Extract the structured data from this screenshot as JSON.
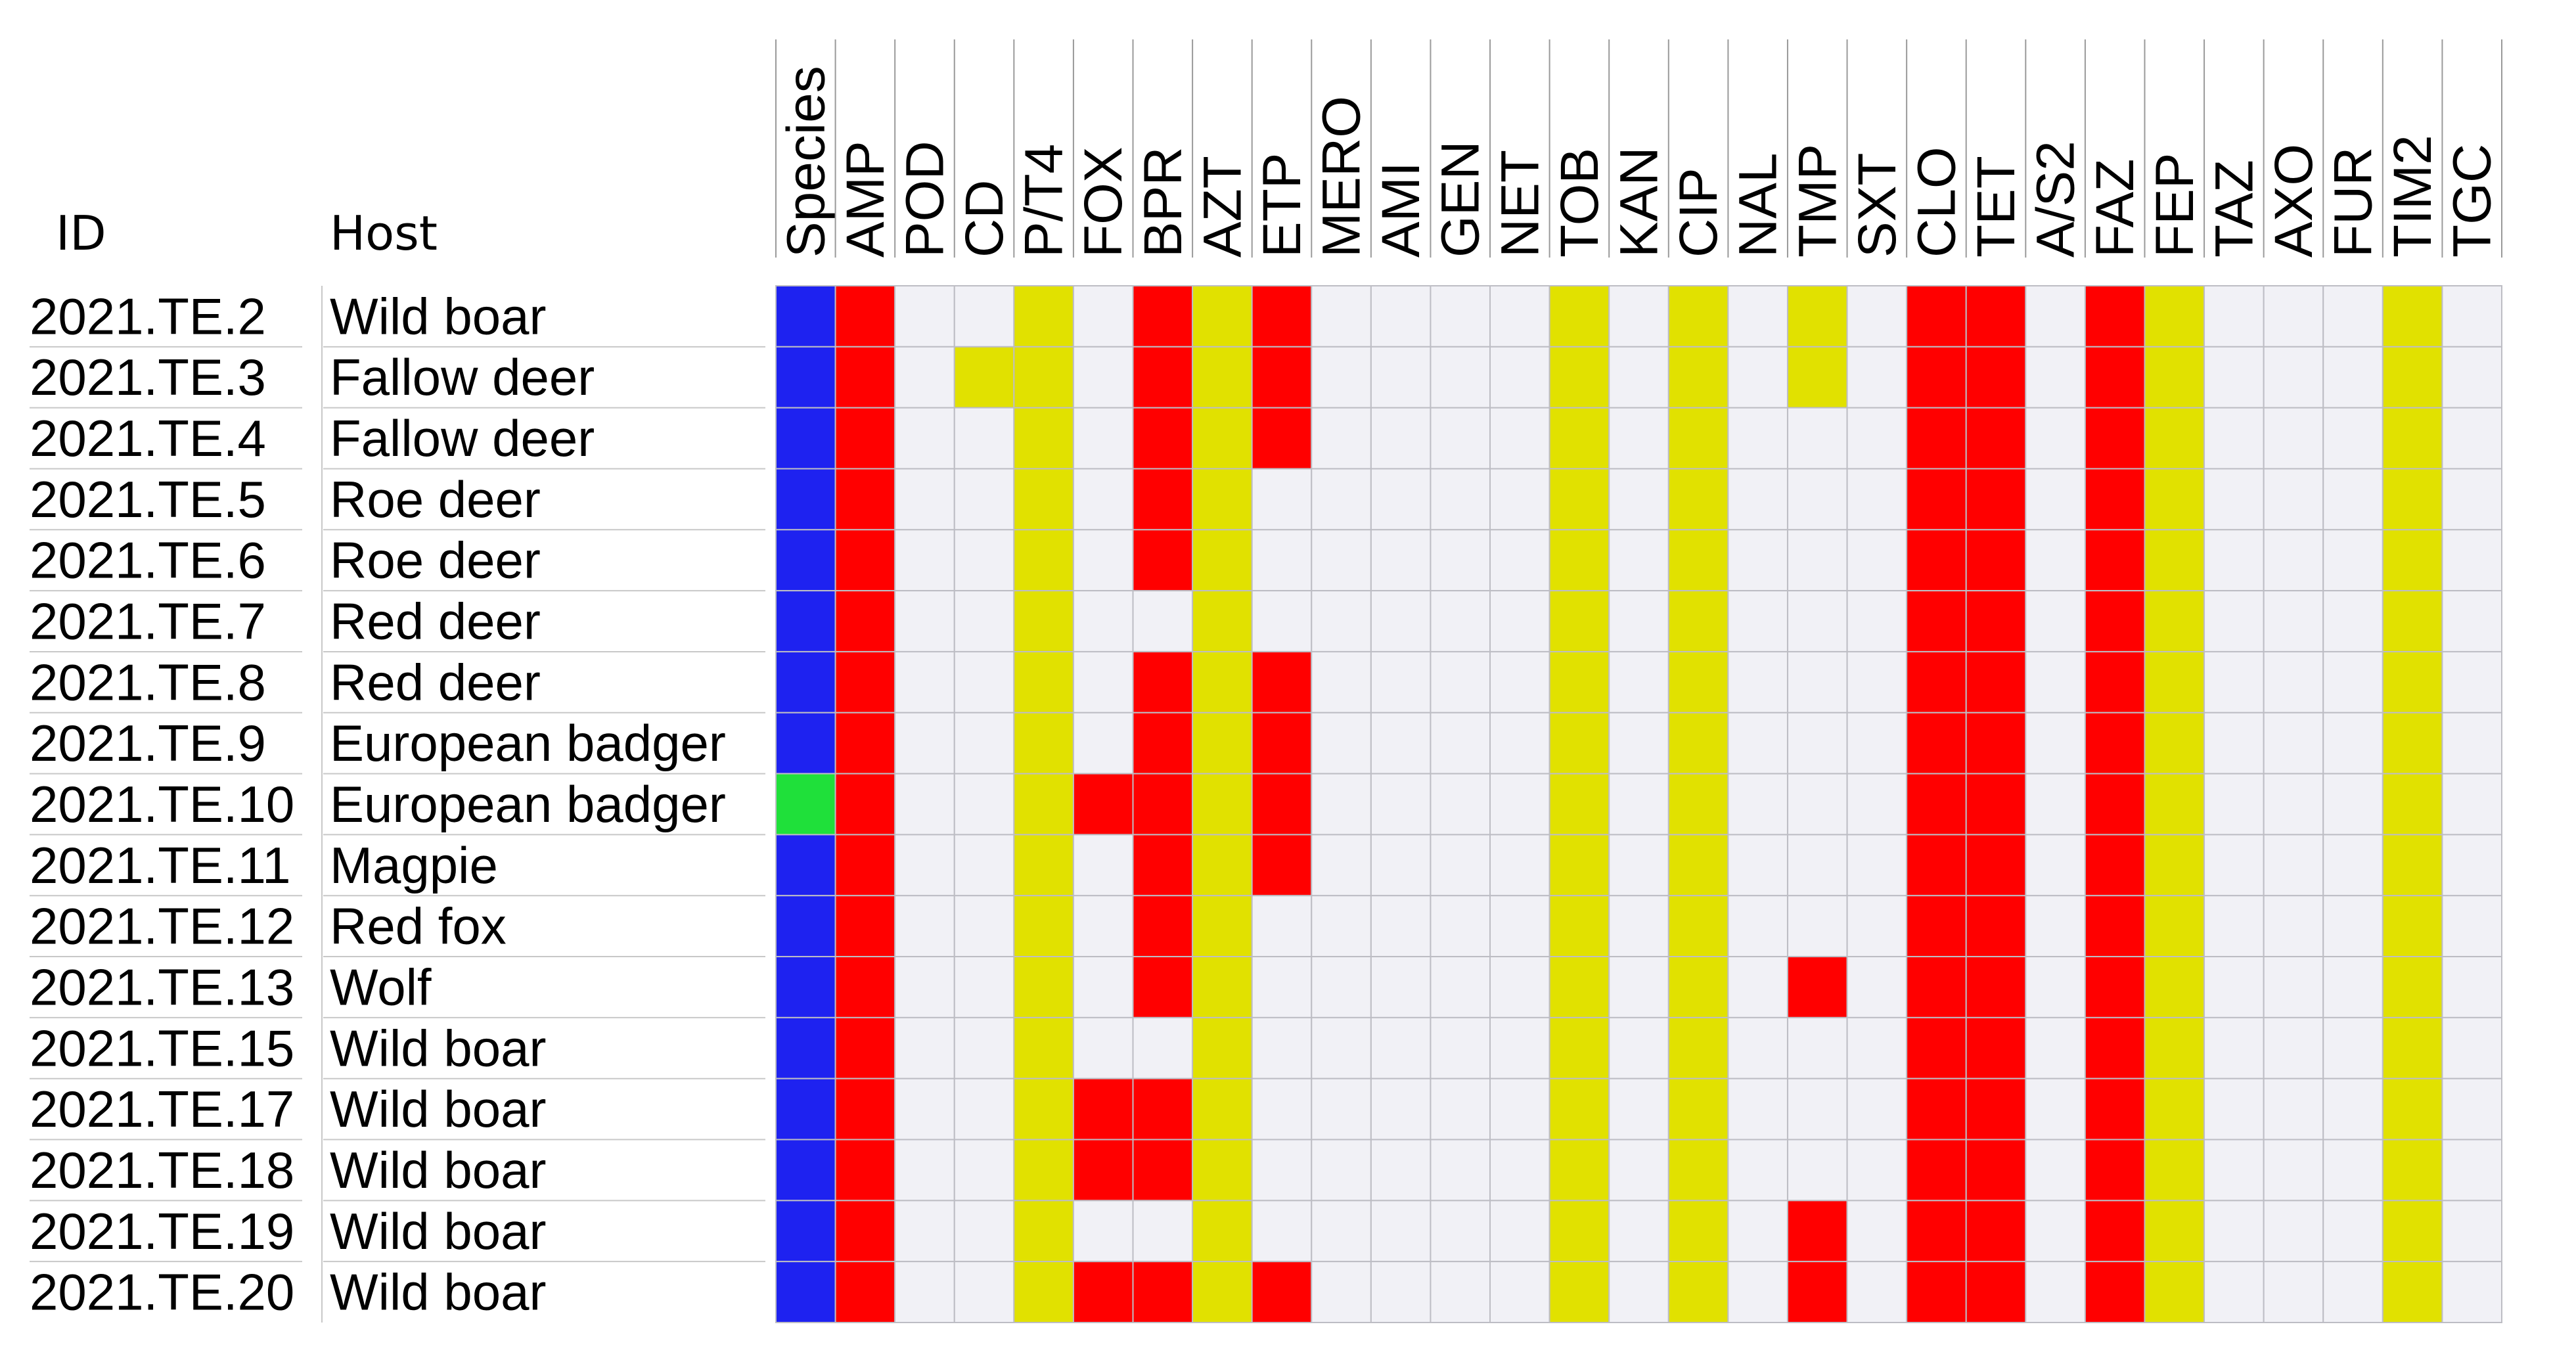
{
  "chart_data": {
    "type": "heatmap",
    "headers": {
      "id": "ID",
      "host": "Host"
    },
    "columns": [
      "Species",
      "AMP",
      "POD",
      "CD",
      "P/T4",
      "FOX",
      "BPR",
      "AZT",
      "ETP",
      "MERO",
      "AMI",
      "GEN",
      "NET",
      "TOB",
      "KAN",
      "CIP",
      "NAL",
      "TMP",
      "SXT",
      "CLO",
      "TET",
      "A/S2",
      "FAZ",
      "FEP",
      "TAZ",
      "AXO",
      "FUR",
      "TIM2",
      "TGC"
    ],
    "rows": [
      {
        "id": "2021.TE.2",
        "host": "Wild boar",
        "cells": "BR00Y0RYR0000Y0Y0Y0RR0RY000Y0"
      },
      {
        "id": "2021.TE.3",
        "host": "Fallow deer",
        "cells": "BR0YY0RYR0000Y0Y0Y0RR0RY000Y0"
      },
      {
        "id": "2021.TE.4",
        "host": "Fallow deer",
        "cells": "BR00Y0RYR0000Y0Y000RR0RY000Y0"
      },
      {
        "id": "2021.TE.5",
        "host": "Roe deer",
        "cells": "BR00Y0RY00000Y0Y000RR0RY000Y0"
      },
      {
        "id": "2021.TE.6",
        "host": "Roe deer",
        "cells": "BR00Y0RY00000Y0Y000RR0RY000Y0"
      },
      {
        "id": "2021.TE.7",
        "host": "Red deer",
        "cells": "BR00Y00Y00000Y0Y000RR0RY000Y0"
      },
      {
        "id": "2021.TE.8",
        "host": "Red deer",
        "cells": "BR00Y0RYR0000Y0Y000RR0RY000Y0"
      },
      {
        "id": "2021.TE.9",
        "host": "European badger",
        "cells": "BR00Y0RYR0000Y0Y000RR0RY000Y0"
      },
      {
        "id": "2021.TE.10",
        "host": "European badger",
        "cells": "GR00YRRYR0000Y0Y000RR0RY000Y0"
      },
      {
        "id": "2021.TE.11",
        "host": "Magpie",
        "cells": "BR00Y0RYR0000Y0Y000RR0RY000Y0"
      },
      {
        "id": "2021.TE.12",
        "host": "Red fox",
        "cells": "BR00Y0RY00000Y0Y000RR0RY000Y0"
      },
      {
        "id": "2021.TE.13",
        "host": "Wolf",
        "cells": "BR00Y0RY00000Y0Y0R0RR0RY000Y0"
      },
      {
        "id": "2021.TE.15",
        "host": "Wild boar",
        "cells": "BR00Y00Y00000Y0Y000RR0RY000Y0"
      },
      {
        "id": "2021.TE.17",
        "host": "Wild boar",
        "cells": "BR00YRRY00000Y0Y000RR0RY000Y0"
      },
      {
        "id": "2021.TE.18",
        "host": "Wild boar",
        "cells": "BR00YRRY00000Y0Y000RR0RY000Y0"
      },
      {
        "id": "2021.TE.19",
        "host": "Wild boar",
        "cells": "BR00Y00Y00000Y0Y0R0RR0RY000Y0"
      },
      {
        "id": "2021.TE.20",
        "host": "Wild boar",
        "cells": "BR00YRRYR0000Y0Y0R0RR0RY000Y0"
      }
    ],
    "color_map": {
      "B": "#1e22f0",
      "G": "#1fe03a",
      "R": "#ff0000",
      "Y": "#e1e100",
      "0": "#f1f1f6"
    },
    "grid": true
  }
}
